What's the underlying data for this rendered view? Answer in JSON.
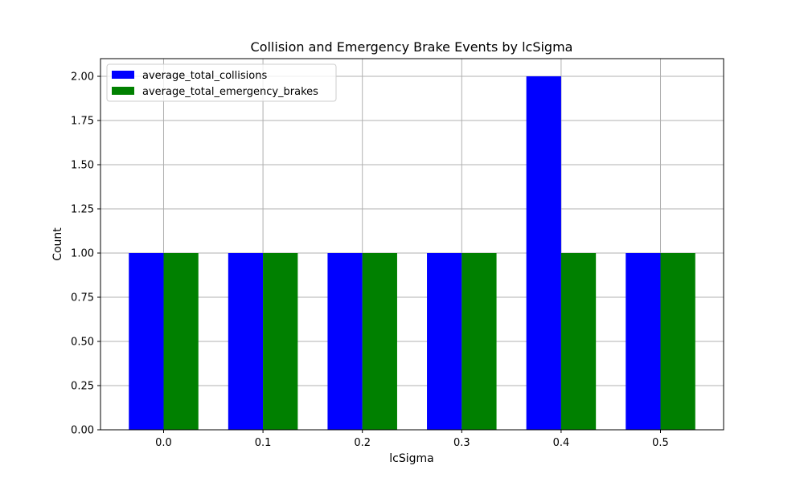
{
  "chart_data": {
    "type": "bar",
    "title": "Collision and Emergency Brake Events by lcSigma",
    "xlabel": "lcSigma",
    "ylabel": "Count",
    "categories": [
      "0.0",
      "0.1",
      "0.2",
      "0.3",
      "0.4",
      "0.5"
    ],
    "series": [
      {
        "name": "average_total_collisions",
        "color": "#0000ff",
        "values": [
          1,
          1,
          1,
          1,
          2,
          1
        ]
      },
      {
        "name": "average_total_emergency_brakes",
        "color": "#008000",
        "values": [
          1,
          1,
          1,
          1,
          1,
          1
        ]
      }
    ],
    "ylim": [
      0,
      2.1
    ],
    "yticks": [
      "0.00",
      "0.25",
      "0.50",
      "0.75",
      "1.00",
      "1.25",
      "1.50",
      "1.75",
      "2.00"
    ],
    "grid": true,
    "legend_position": "top-left"
  }
}
